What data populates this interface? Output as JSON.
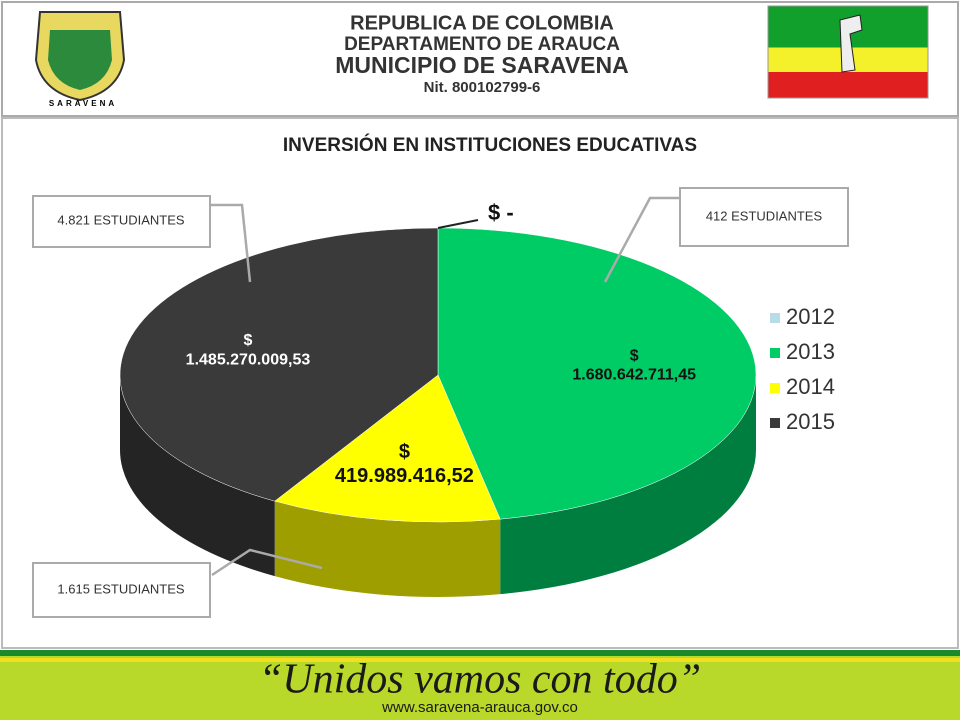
{
  "header": {
    "lines": [
      "REPUBLICA DE COLOMBIA",
      "DEPARTAMENTO DE ARAUCA",
      "MUNICIPIO DE SARAVENA",
      "Nit. 800102799-6"
    ],
    "logo_text": "SARAVENA"
  },
  "chart_data": {
    "type": "pie3d",
    "title": "INVERSIÓN EN INSTITUCIONES EDUCATIVAS",
    "categories": [
      "2012",
      "2013",
      "2014",
      "2015"
    ],
    "values": [
      0,
      1680642711.45,
      419989416.52,
      1485270009.53
    ],
    "value_labels": [
      "$ -",
      "$ 1.680.642.711,45",
      "$ 419.989.416,52",
      "$ 1.485.270.009,53"
    ],
    "colors": [
      "#b7dde8",
      "#00cc66",
      "#ffff00",
      "#3a3a3a"
    ],
    "legend": "right",
    "annotations": [
      "4.821 ESTUDIANTES",
      "412 ESTUDIANTES",
      "1.615 ESTUDIANTES"
    ]
  },
  "footer": {
    "slogan": "“Unidos vamos con todo”",
    "url": "www.saravena-arauca.gov.co"
  }
}
